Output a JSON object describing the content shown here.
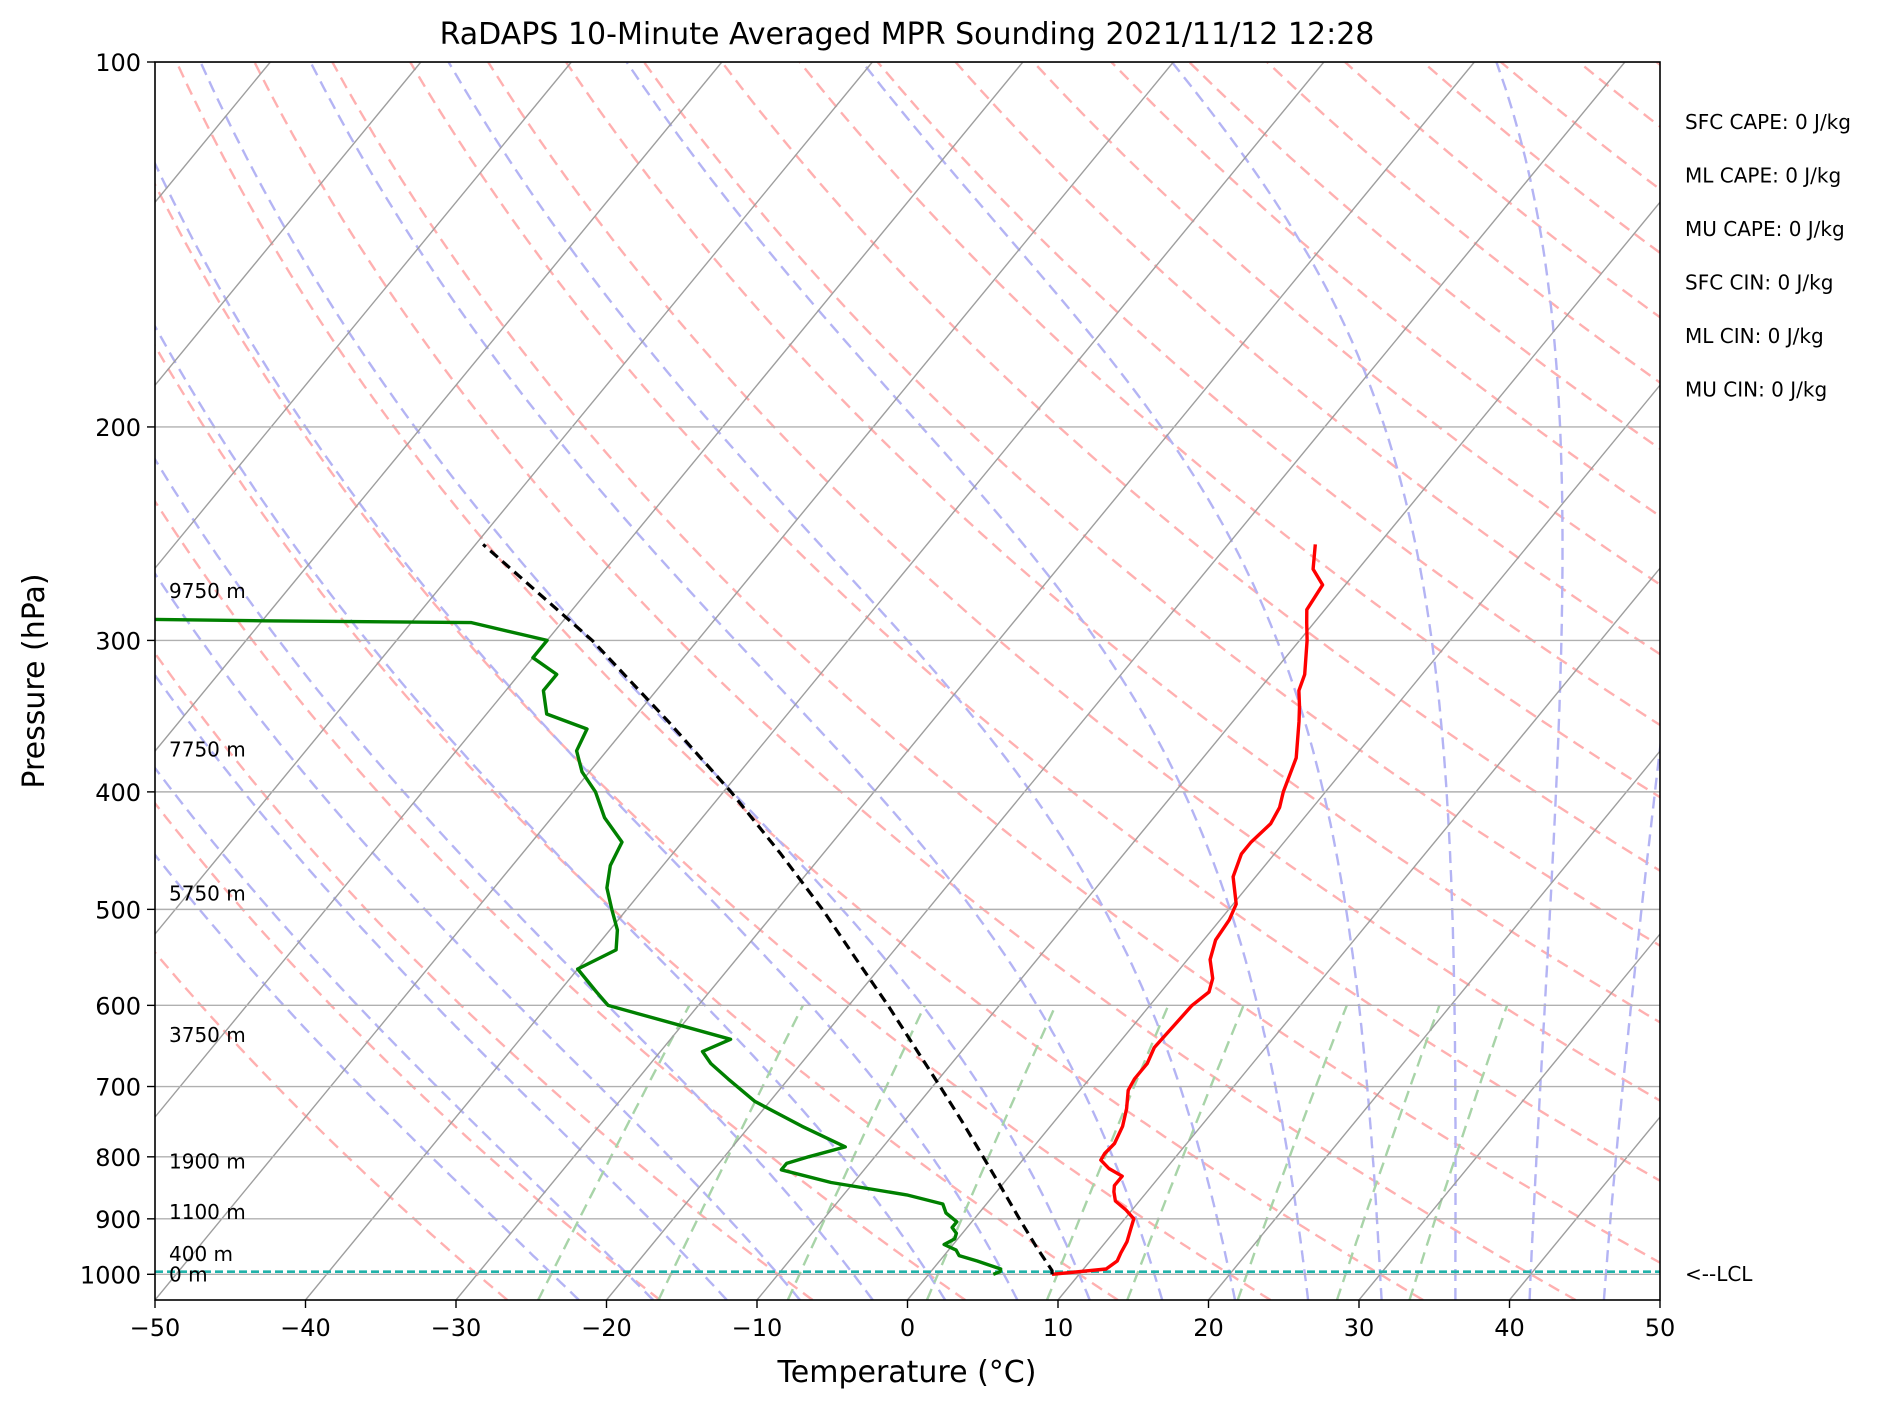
{
  "chart_data": {
    "type": "line",
    "title": "RaDAPS 10-Minute Averaged MPR Sounding 2021/11/12 12:28",
    "xlabel": "Temperature (°C)",
    "ylabel": "Pressure (hPa)",
    "xlim": [
      -50,
      50
    ],
    "ylim": [
      1050,
      100
    ],
    "y_scale": "log",
    "skew": "skew-T",
    "xticks": [
      -50,
      -40,
      -30,
      -20,
      -10,
      0,
      10,
      20,
      30,
      40,
      50
    ],
    "xtick_labels": [
      "−50",
      "−40",
      "−30",
      "−20",
      "−10",
      "0",
      "10",
      "20",
      "30",
      "40",
      "50"
    ],
    "yticks": [
      1000,
      900,
      800,
      700,
      600,
      500,
      400,
      300,
      200,
      100
    ],
    "ytick_labels": [
      "1000",
      "900",
      "800",
      "700",
      "600",
      "500",
      "400",
      "300",
      "200",
      "100"
    ],
    "grid": true,
    "series": [
      {
        "role": "temperature",
        "color": "#ff0000",
        "points": [
          [
            1000,
            8.2
          ],
          [
            990,
            11.5
          ],
          [
            975,
            11.8
          ],
          [
            960,
            11.6
          ],
          [
            940,
            11.4
          ],
          [
            920,
            11.0
          ],
          [
            900,
            10.6
          ],
          [
            885,
            9.6
          ],
          [
            870,
            8.4
          ],
          [
            855,
            7.8
          ],
          [
            845,
            7.5
          ],
          [
            830,
            7.5
          ],
          [
            818,
            6.2
          ],
          [
            805,
            5.2
          ],
          [
            795,
            5.1
          ],
          [
            780,
            5.2
          ],
          [
            755,
            4.8
          ],
          [
            730,
            4.1
          ],
          [
            705,
            3.2
          ],
          [
            690,
            3.0
          ],
          [
            670,
            3.0
          ],
          [
            650,
            2.6
          ],
          [
            625,
            2.7
          ],
          [
            600,
            2.8
          ],
          [
            585,
            3.2
          ],
          [
            570,
            2.7
          ],
          [
            550,
            1.5
          ],
          [
            530,
            0.8
          ],
          [
            510,
            0.6
          ],
          [
            495,
            0.2
          ],
          [
            470,
            -1.5
          ],
          [
            450,
            -2.2
          ],
          [
            440,
            -2.2
          ],
          [
            425,
            -1.9
          ],
          [
            412,
            -2.2
          ],
          [
            400,
            -2.8
          ],
          [
            375,
            -3.8
          ],
          [
            350,
            -5.6
          ],
          [
            340,
            -6.4
          ],
          [
            330,
            -7.3
          ],
          [
            320,
            -7.8
          ],
          [
            300,
            -9.5
          ],
          [
            290,
            -10.5
          ],
          [
            283,
            -11.2
          ],
          [
            270,
            -11.5
          ],
          [
            262,
            -13.0
          ],
          [
            250,
            -14.2
          ]
        ]
      },
      {
        "role": "dewpoint",
        "color": "#008000",
        "points": [
          [
            1000,
            4.3
          ],
          [
            995,
            4.6
          ],
          [
            990,
            4.5
          ],
          [
            975,
            2.5
          ],
          [
            965,
            1.0
          ],
          [
            955,
            0.5
          ],
          [
            945,
            -0.6
          ],
          [
            935,
            -0.2
          ],
          [
            925,
            -0.4
          ],
          [
            915,
            -1.0
          ],
          [
            905,
            -1.0
          ],
          [
            890,
            -2.2
          ],
          [
            875,
            -2.9
          ],
          [
            860,
            -5.8
          ],
          [
            840,
            -11.5
          ],
          [
            820,
            -15.5
          ],
          [
            810,
            -15.5
          ],
          [
            800,
            -14.4
          ],
          [
            785,
            -12.5
          ],
          [
            755,
            -16.5
          ],
          [
            720,
            -21.0
          ],
          [
            690,
            -24.0
          ],
          [
            670,
            -26.0
          ],
          [
            655,
            -27.2
          ],
          [
            640,
            -26.0
          ],
          [
            600,
            -36.0
          ],
          [
            585,
            -37.5
          ],
          [
            560,
            -40.0
          ],
          [
            540,
            -38.5
          ],
          [
            520,
            -39.5
          ],
          [
            500,
            -41.0
          ],
          [
            480,
            -42.5
          ],
          [
            460,
            -43.5
          ],
          [
            440,
            -44.0
          ],
          [
            420,
            -46.5
          ],
          [
            400,
            -48.5
          ],
          [
            385,
            -50.5
          ],
          [
            370,
            -52.0
          ],
          [
            355,
            -52.5
          ],
          [
            345,
            -56.0
          ],
          [
            330,
            -57.5
          ],
          [
            320,
            -57.5
          ],
          [
            310,
            -60.0
          ],
          [
            300,
            -60.0
          ],
          [
            290,
            -66.0
          ],
          [
            289,
            -80.0
          ],
          [
            288,
            -90.0
          ]
        ]
      },
      {
        "role": "parcel-profile",
        "color": "#000000",
        "style": "dashed",
        "points": [
          [
            1000,
            8.2
          ],
          [
            993,
            8.0
          ],
          [
            950,
            5.7
          ],
          [
            900,
            3.0
          ],
          [
            850,
            0.2
          ],
          [
            800,
            -2.8
          ],
          [
            750,
            -6.0
          ],
          [
            700,
            -9.5
          ],
          [
            650,
            -13.3
          ],
          [
            600,
            -17.4
          ],
          [
            550,
            -22.0
          ],
          [
            500,
            -27.0
          ],
          [
            450,
            -32.8
          ],
          [
            400,
            -39.5
          ],
          [
            350,
            -47.5
          ],
          [
            300,
            -57.0
          ],
          [
            250,
            -69.5
          ]
        ]
      }
    ],
    "height_labels": [
      {
        "text": "9750 m",
        "p": 273
      },
      {
        "text": "7750 m",
        "p": 369
      },
      {
        "text": "5750 m",
        "p": 485
      },
      {
        "text": "3750 m",
        "p": 635
      },
      {
        "text": "1900 m",
        "p": 807
      },
      {
        "text": "1100 m",
        "p": 888
      },
      {
        "text": "400 m",
        "p": 962
      },
      {
        "text": "0 m",
        "p": 1000
      }
    ],
    "lcl": {
      "p": 995,
      "label": "<--LCL"
    },
    "indices": [
      "SFC CAPE: 0 J/kg",
      "ML CAPE: 0 J/kg",
      "MU CAPE: 0 J/kg",
      "SFC CIN: 0 J/kg",
      "ML CIN: 0 J/kg",
      "MU CIN: 0 J/kg"
    ],
    "colors": {
      "isotherm": "#9e9e9e",
      "dry_adiabat": "#ffb0b0",
      "moist_adiabat": "#b4b4f4",
      "mixing_ratio": "#a8d4a8",
      "lcl_line": "#20b2aa",
      "grid": "#b0b0b0"
    }
  }
}
